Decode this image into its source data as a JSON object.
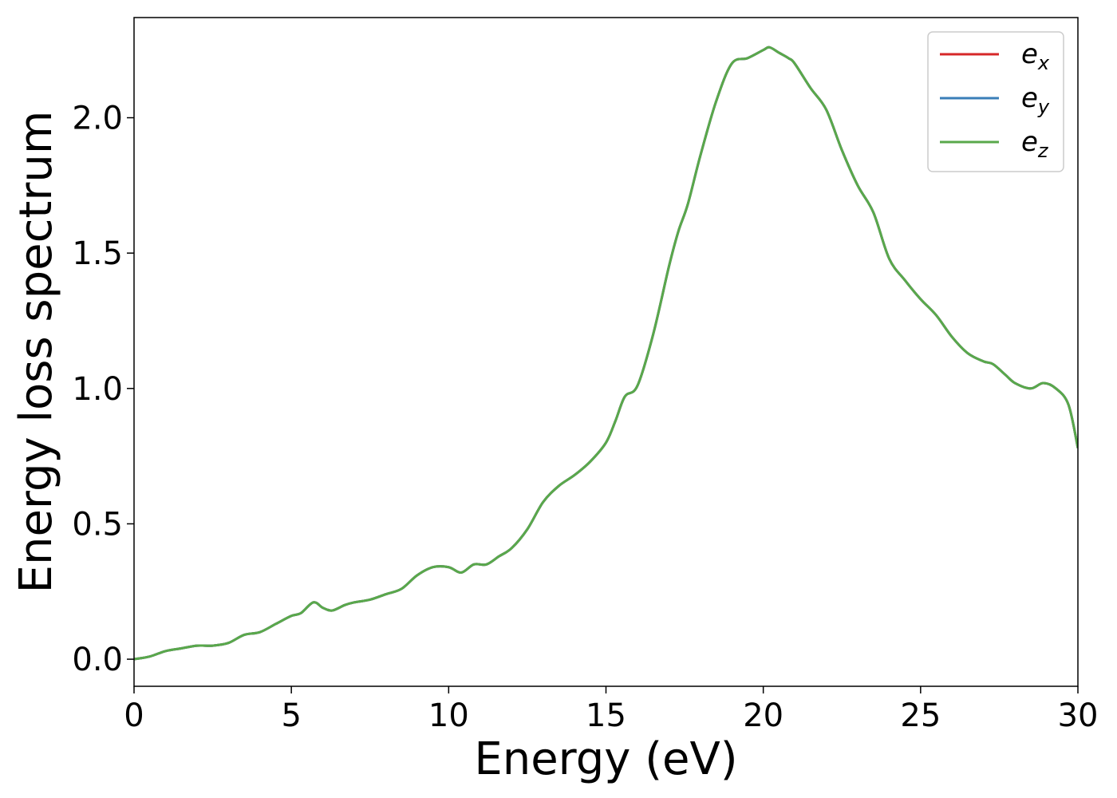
{
  "chart_data": {
    "type": "line",
    "title": "",
    "xlabel": "Energy (eV)",
    "ylabel": "Energy loss spectrum",
    "xlim": [
      0,
      30
    ],
    "ylim": [
      -0.1,
      2.37
    ],
    "xticks": [
      0,
      5,
      10,
      15,
      20,
      25,
      30
    ],
    "xtick_labels": [
      "0",
      "5",
      "10",
      "15",
      "20",
      "25",
      "30"
    ],
    "yticks": [
      0.0,
      0.5,
      1.0,
      1.5,
      2.0
    ],
    "ytick_labels": [
      "0.0",
      "0.5",
      "1.0",
      "1.5",
      "2.0"
    ],
    "grid": false,
    "legend_position": "top-right",
    "x": [
      0,
      0.5,
      1,
      1.5,
      2,
      2.5,
      3,
      3.5,
      4,
      4.5,
      5,
      5.3,
      5.7,
      6,
      6.3,
      6.7,
      7,
      7.5,
      8,
      8.5,
      9,
      9.5,
      10,
      10.4,
      10.8,
      11.2,
      11.6,
      12,
      12.5,
      13,
      13.5,
      14,
      14.5,
      15,
      15.3,
      15.6,
      16,
      16.5,
      17,
      17.3,
      17.6,
      18,
      18.5,
      19,
      19.5,
      20,
      20.2,
      20.5,
      20.8,
      21,
      21.5,
      22,
      22.5,
      23,
      23.5,
      24,
      24.5,
      25,
      25.5,
      26,
      26.5,
      27,
      27.3,
      27.7,
      28,
      28.5,
      28.9,
      29.3,
      29.7,
      30
    ],
    "series": [
      {
        "name": "e",
        "name_sub": "x",
        "color": "#d62728",
        "values": [
          0.0,
          0.01,
          0.03,
          0.04,
          0.05,
          0.05,
          0.06,
          0.09,
          0.1,
          0.13,
          0.16,
          0.17,
          0.21,
          0.19,
          0.18,
          0.2,
          0.21,
          0.22,
          0.24,
          0.26,
          0.31,
          0.34,
          0.34,
          0.32,
          0.35,
          0.35,
          0.38,
          0.41,
          0.48,
          0.58,
          0.64,
          0.68,
          0.73,
          0.8,
          0.88,
          0.97,
          1.01,
          1.2,
          1.45,
          1.58,
          1.68,
          1.86,
          2.06,
          2.2,
          2.22,
          2.25,
          2.26,
          2.24,
          2.22,
          2.2,
          2.11,
          2.03,
          1.88,
          1.75,
          1.65,
          1.48,
          1.4,
          1.33,
          1.27,
          1.19,
          1.13,
          1.1,
          1.09,
          1.05,
          1.02,
          1.0,
          1.02,
          1.0,
          0.94,
          0.78
        ]
      },
      {
        "name": "e",
        "name_sub": "y",
        "color": "#3a7eb8",
        "values": [
          0.0,
          0.01,
          0.03,
          0.04,
          0.05,
          0.05,
          0.06,
          0.09,
          0.1,
          0.13,
          0.16,
          0.17,
          0.21,
          0.19,
          0.18,
          0.2,
          0.21,
          0.22,
          0.24,
          0.26,
          0.31,
          0.34,
          0.34,
          0.32,
          0.35,
          0.35,
          0.38,
          0.41,
          0.48,
          0.58,
          0.64,
          0.68,
          0.73,
          0.8,
          0.88,
          0.97,
          1.01,
          1.2,
          1.45,
          1.58,
          1.68,
          1.86,
          2.06,
          2.2,
          2.22,
          2.25,
          2.26,
          2.24,
          2.22,
          2.2,
          2.11,
          2.03,
          1.88,
          1.75,
          1.65,
          1.48,
          1.4,
          1.33,
          1.27,
          1.19,
          1.13,
          1.1,
          1.09,
          1.05,
          1.02,
          1.0,
          1.02,
          1.0,
          0.94,
          0.78
        ]
      },
      {
        "name": "e",
        "name_sub": "z",
        "color": "#59a84b",
        "values": [
          0.0,
          0.01,
          0.03,
          0.04,
          0.05,
          0.05,
          0.06,
          0.09,
          0.1,
          0.13,
          0.16,
          0.17,
          0.21,
          0.19,
          0.18,
          0.2,
          0.21,
          0.22,
          0.24,
          0.26,
          0.31,
          0.34,
          0.34,
          0.32,
          0.35,
          0.35,
          0.38,
          0.41,
          0.48,
          0.58,
          0.64,
          0.68,
          0.73,
          0.8,
          0.88,
          0.97,
          1.01,
          1.2,
          1.45,
          1.58,
          1.68,
          1.86,
          2.06,
          2.2,
          2.22,
          2.25,
          2.26,
          2.24,
          2.22,
          2.2,
          2.11,
          2.03,
          1.88,
          1.75,
          1.65,
          1.48,
          1.4,
          1.33,
          1.27,
          1.19,
          1.13,
          1.1,
          1.09,
          1.05,
          1.02,
          1.0,
          1.02,
          1.0,
          0.94,
          0.78
        ]
      }
    ]
  }
}
